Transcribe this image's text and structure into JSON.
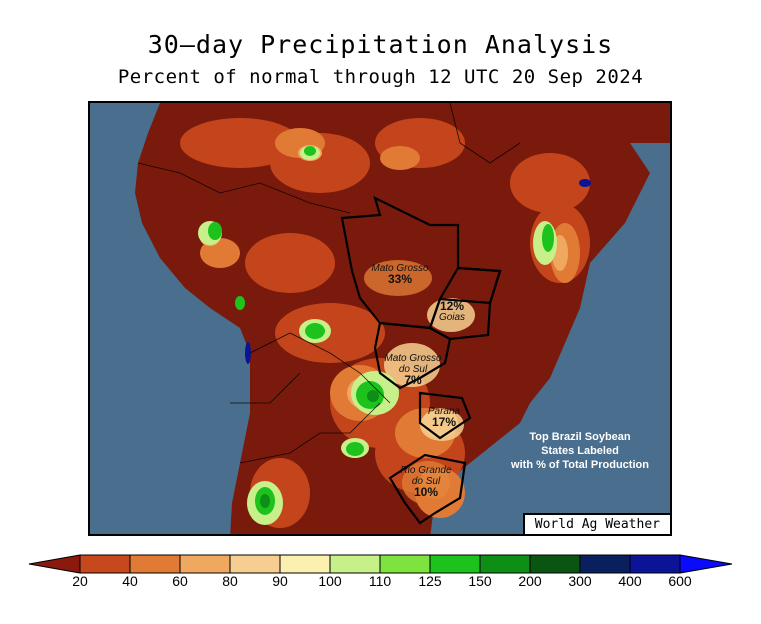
{
  "title": "30—day Precipitation Analysis",
  "subtitle": "Percent of normal through 12 UTC 20 Sep 2024",
  "credit": "World Ag Weather",
  "note": {
    "line1": "Top Brazil Soybean",
    "line2": "States Labeled",
    "line3": "with % of Total Production"
  },
  "states": [
    {
      "name": "Mato Grosso",
      "pct": "33%"
    },
    {
      "name": "Goias",
      "pct": "12%"
    },
    {
      "name_line1": "Mato Grosso",
      "name_line2": "do Sul",
      "pct": "7%"
    },
    {
      "name": "Parana",
      "pct": "17%"
    },
    {
      "name_line1": "Rio Grande",
      "name_line2": "do Sul",
      "pct": "10%"
    }
  ],
  "legend": {
    "thresholds": [
      "20",
      "40",
      "60",
      "80",
      "90",
      "100",
      "110",
      "125",
      "150",
      "200",
      "300",
      "400",
      "600"
    ],
    "colors": [
      "#8b1a0e",
      "#c8481d",
      "#e07a35",
      "#f0a860",
      "#f6cf90",
      "#fbf0b0",
      "#c8f08a",
      "#7ee33e",
      "#1dc21d",
      "#0d8f16",
      "#0b5512",
      "#0a1f5e",
      "#0b1396",
      "#0a0aff"
    ]
  },
  "colors": {
    "ocean": "#4a6e8e",
    "very_dry": "#7a1a0c"
  }
}
